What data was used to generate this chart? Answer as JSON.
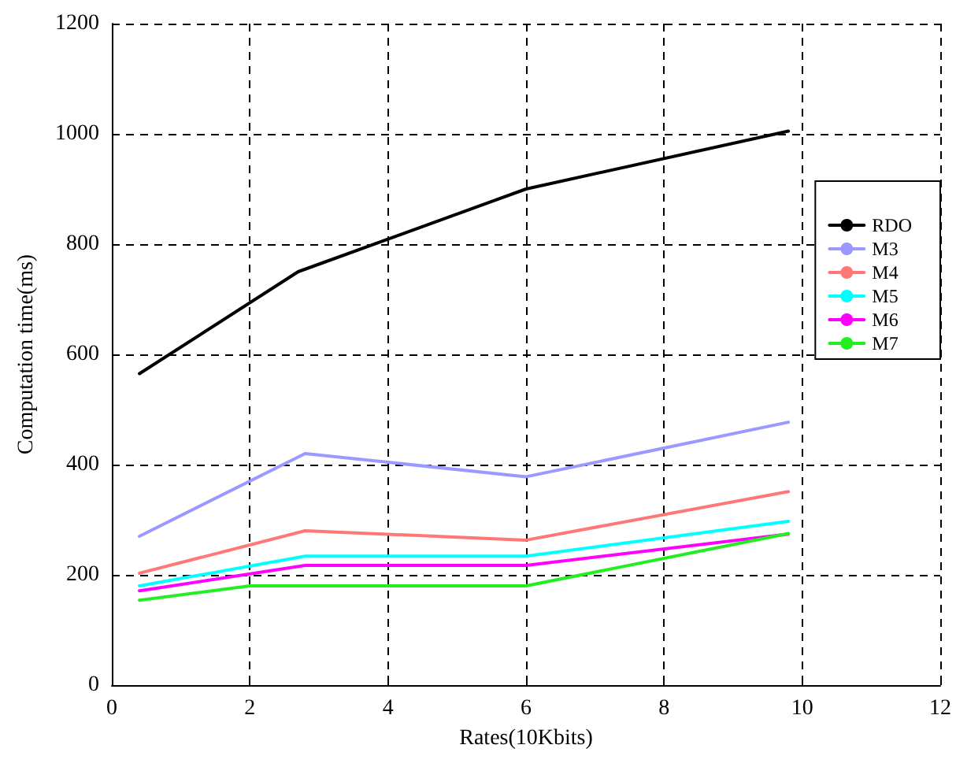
{
  "chart_data": {
    "type": "line",
    "xlabel": "Rates(10Kbits)",
    "ylabel": "Computation time(ms)",
    "xlim": [
      0,
      12
    ],
    "xticks": [
      0,
      2,
      4,
      6,
      8,
      10,
      12
    ],
    "ylim": [
      0,
      1200
    ],
    "yticks": [
      0,
      200,
      400,
      600,
      800,
      1000,
      1200
    ],
    "grid": true,
    "legend": "top right",
    "marker": "none",
    "line_style": "solid",
    "series": [
      {
        "name": "RDO",
        "color": "#000000",
        "x": [
          0.4,
          2.7,
          6,
          9.8
        ],
        "values": [
          565,
          750,
          900,
          1005
        ]
      },
      {
        "name": "M3",
        "color": "#9999ff",
        "x": [
          0.4,
          2.8,
          6,
          9.8
        ],
        "values": [
          270,
          420,
          378,
          477
        ]
      },
      {
        "name": "M4",
        "color": "#ff7777",
        "x": [
          0.4,
          2.8,
          6,
          9.8
        ],
        "values": [
          203,
          280,
          263,
          351
        ]
      },
      {
        "name": "M5",
        "color": "#00ffff",
        "x": [
          0.4,
          2.8,
          6,
          9.8
        ],
        "values": [
          180,
          234,
          234,
          297
        ]
      },
      {
        "name": "M6",
        "color": "#ff00ff",
        "x": [
          0.4,
          2.8,
          6,
          9.8
        ],
        "values": [
          171,
          217,
          217,
          274
        ]
      },
      {
        "name": "M7",
        "color": "#22ee22",
        "x": [
          0.4,
          2.0,
          6,
          9.8
        ],
        "values": [
          154,
          180,
          180,
          275
        ]
      }
    ]
  }
}
